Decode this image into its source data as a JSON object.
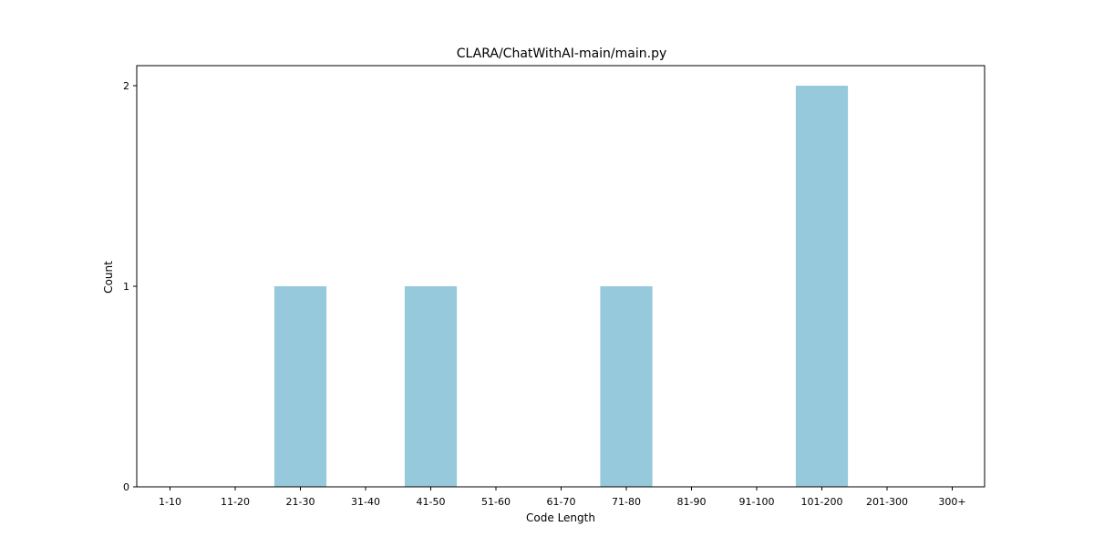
{
  "chart_data": {
    "type": "bar",
    "title": "CLARA/ChatWithAI-main/main.py",
    "xlabel": "Code Length",
    "ylabel": "Count",
    "categories": [
      "1-10",
      "11-20",
      "21-30",
      "31-40",
      "41-50",
      "51-60",
      "61-70",
      "71-80",
      "81-90",
      "91-100",
      "101-200",
      "201-300",
      "300+"
    ],
    "values": [
      0,
      0,
      1,
      0,
      1,
      0,
      0,
      1,
      0,
      0,
      2,
      0,
      0
    ],
    "ylim": [
      0,
      2.1
    ],
    "yticks": [
      0,
      1,
      2
    ],
    "bar_color": "#96c9dc",
    "grid": false,
    "legend": "none"
  }
}
